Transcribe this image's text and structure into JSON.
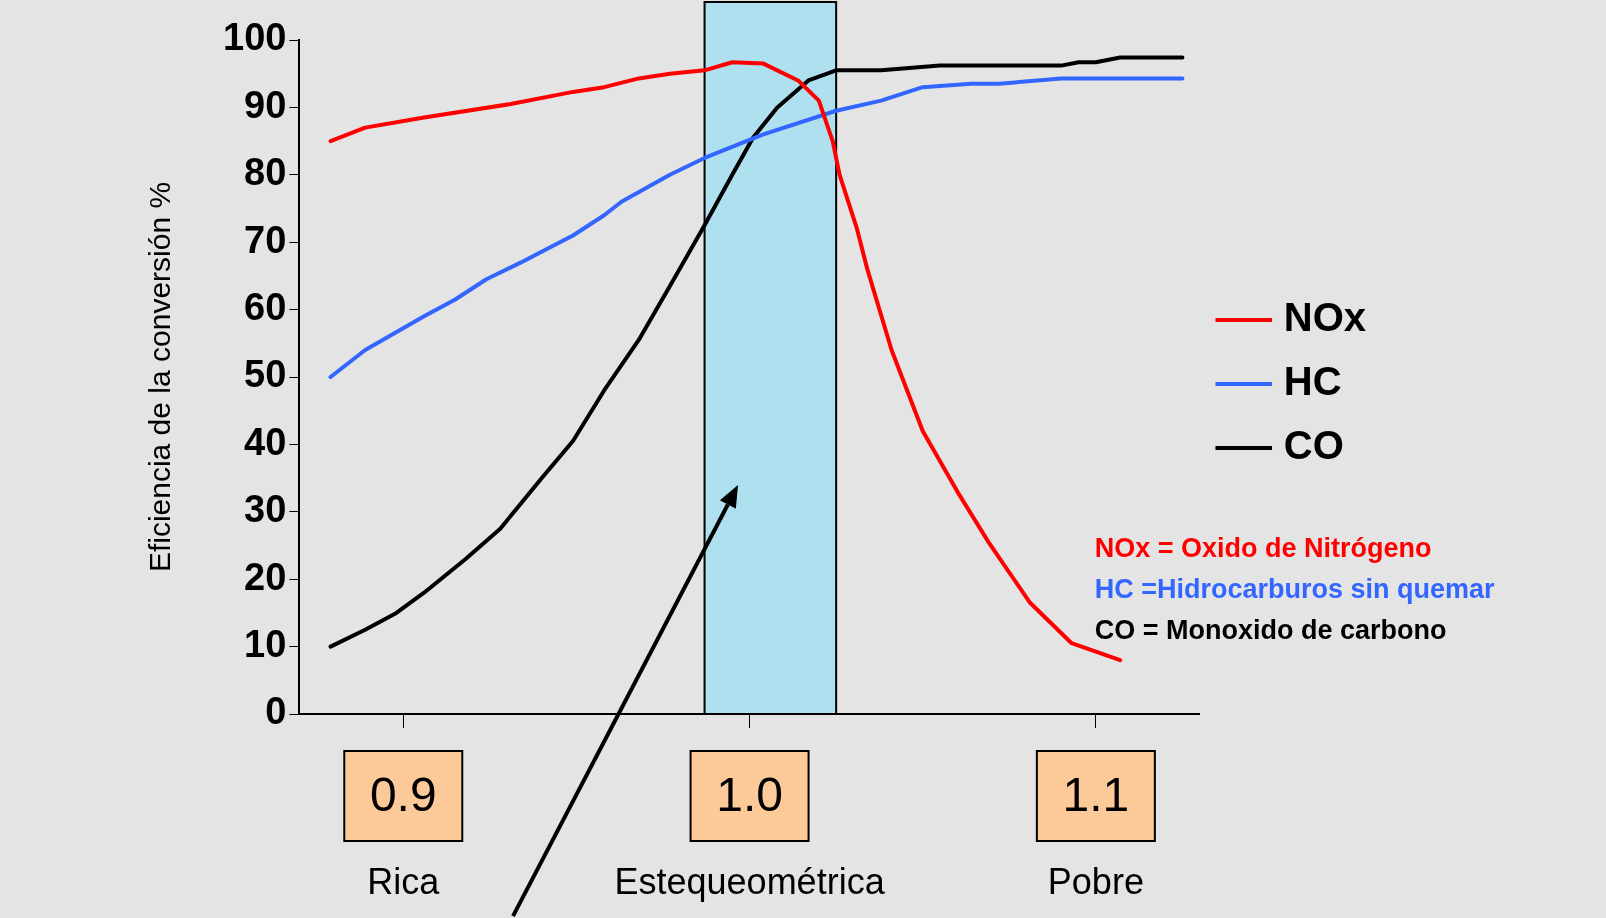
{
  "chart_data": {
    "type": "line",
    "ylabel": "Eficiencia de la conversión %",
    "xlim": [
      0.87,
      1.13
    ],
    "xticks": [
      0.9,
      {
        "value": 1.0,
        "label": "1.0"
      },
      1.1
    ],
    "ylim": [
      0,
      100
    ],
    "yticks": [
      0,
      10,
      20,
      30,
      40,
      50,
      60,
      70,
      80,
      90,
      100
    ],
    "grid": false,
    "legend": "right",
    "marker": "none",
    "line_style": "solid",
    "series": [
      {
        "name": "NOx",
        "color": "#ff0000",
        "x": [
          0.879,
          0.889,
          0.906,
          0.931,
          0.949,
          0.958,
          0.968,
          0.977,
          0.987,
          0.995,
          1.004,
          1.014,
          1.02,
          1.024,
          1.026,
          1.031,
          1.034,
          1.041,
          1.05,
          1.06,
          1.069,
          1.081,
          1.093,
          1.107
        ],
        "values": [
          85,
          87,
          88.5,
          90.5,
          92.3,
          93,
          94.3,
          95,
          95.5,
          96.7,
          96.5,
          94,
          91,
          85,
          80,
          72,
          66,
          54,
          42,
          33,
          25.5,
          16.5,
          10.5,
          8
        ]
      },
      {
        "name": "HC",
        "color": "#3366ff",
        "x": [
          0.879,
          0.889,
          0.906,
          0.915,
          0.924,
          0.934,
          0.949,
          0.958,
          0.963,
          0.977,
          0.987,
          1.004,
          1.025,
          1.038,
          1.05,
          1.064,
          1.072,
          1.09,
          1.125
        ],
        "values": [
          50,
          54,
          59,
          61.5,
          64.5,
          67,
          71,
          74,
          76,
          80,
          82.5,
          86,
          89.5,
          91,
          93,
          93.5,
          93.5,
          94.3,
          94.3
        ]
      },
      {
        "name": "CO",
        "color": "#000000",
        "x": [
          0.879,
          0.889,
          0.898,
          0.906,
          0.918,
          0.928,
          0.94,
          0.949,
          0.958,
          0.968,
          0.977,
          0.987,
          0.995,
          1.001,
          1.008,
          1.017,
          1.025,
          1.038,
          1.055,
          1.09,
          1.095,
          1.1,
          1.107,
          1.125
        ],
        "values": [
          10,
          12.5,
          15,
          18,
          23,
          27.5,
          35,
          40.5,
          48,
          55.5,
          63.5,
          72.5,
          80,
          85.5,
          90,
          94,
          95.5,
          95.5,
          96.2,
          96.2,
          96.7,
          96.7,
          97.4,
          97.4
        ]
      }
    ],
    "bands": [
      {
        "axis": "x",
        "from": 0.987,
        "to": 1.025,
        "color": "#aee0f0"
      }
    ],
    "annotations": [
      "Rica",
      "Estequeométrica",
      "Pobre",
      "NOx = Oxido de Nitrógeno",
      "HC =Hidrocarburos sin quemar",
      "CO = Monoxido de carbono"
    ]
  }
}
